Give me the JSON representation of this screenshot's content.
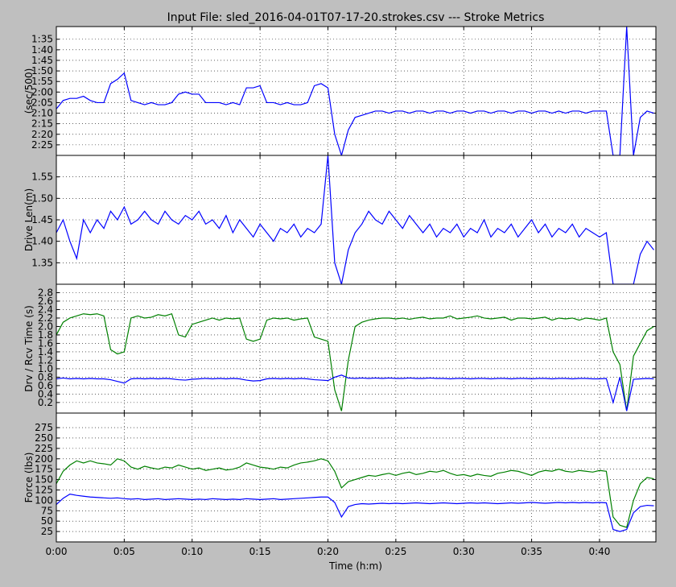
{
  "chart_data": {
    "type": "line",
    "title": "Input File:  sled_2016-04-01T07-17-20.strokes.csv --- Stroke Metrics",
    "xlabel": "Time (h:m)",
    "xlim": [
      0,
      44.15
    ],
    "xticks": [
      {
        "value": 0,
        "label": "0:00"
      },
      {
        "value": 5,
        "label": "0:05"
      },
      {
        "value": 10,
        "label": "0:10"
      },
      {
        "value": 15,
        "label": "0:15"
      },
      {
        "value": 20,
        "label": "0:20"
      },
      {
        "value": 25,
        "label": "0:25"
      },
      {
        "value": 30,
        "label": "0:30"
      },
      {
        "value": 35,
        "label": "0:35"
      },
      {
        "value": 40,
        "label": "0:40"
      }
    ],
    "grid": true,
    "x": [
      0,
      0.5,
      1,
      1.5,
      2,
      2.5,
      3,
      3.5,
      4,
      4.5,
      5,
      5.5,
      6,
      6.5,
      7,
      7.5,
      8,
      8.5,
      9,
      9.5,
      10,
      10.5,
      11,
      11.5,
      12,
      12.5,
      13,
      13.5,
      14,
      14.5,
      15,
      15.5,
      16,
      16.5,
      17,
      17.5,
      18,
      18.5,
      19,
      19.5,
      20,
      20.5,
      21,
      21.5,
      22,
      22.5,
      23,
      23.5,
      24,
      24.5,
      25,
      25.5,
      26,
      26.5,
      27,
      27.5,
      28,
      28.5,
      29,
      29.5,
      30,
      30.5,
      31,
      31.5,
      32,
      32.5,
      33,
      33.5,
      34,
      34.5,
      35,
      35.5,
      36,
      36.5,
      37,
      37.5,
      38,
      38.5,
      39,
      39.5,
      40,
      40.5,
      41,
      41.5,
      42,
      42.5,
      43,
      43.5,
      44
    ],
    "panels": [
      {
        "ylabel": "(sec/500)",
        "ylim": [
          150,
          89
        ],
        "yticks": [
          {
            "value": 95,
            "label": "1:35"
          },
          {
            "value": 100,
            "label": "1:40"
          },
          {
            "value": 105,
            "label": "1:45"
          },
          {
            "value": 110,
            "label": "1:50"
          },
          {
            "value": 115,
            "label": "1:55"
          },
          {
            "value": 120,
            "label": "2:00"
          },
          {
            "value": 125,
            "label": "2:05"
          },
          {
            "value": 130,
            "label": "2:10"
          },
          {
            "value": 135,
            "label": "2:15"
          },
          {
            "value": 140,
            "label": "2:20"
          },
          {
            "value": 145,
            "label": "2:25"
          }
        ],
        "series": [
          {
            "color": "#0000ff",
            "values": [
              128,
              124,
              123,
              123,
              122,
              124,
              125,
              125,
              116,
              114,
              111,
              124,
              125,
              126,
              125,
              126,
              126,
              125,
              121,
              120,
              121,
              121,
              125,
              125,
              125,
              126,
              125,
              126,
              118,
              118,
              117,
              125,
              125,
              126,
              125,
              126,
              126,
              125,
              117,
              116,
              118,
              140,
              150,
              138,
              132,
              131,
              130,
              129,
              129,
              130,
              129,
              129,
              130,
              129,
              129,
              130,
              129,
              129,
              130,
              129,
              129,
              130,
              129,
              129,
              130,
              129,
              129,
              130,
              129,
              129,
              130,
              129,
              129,
              130,
              129,
              130,
              129,
              129,
              130,
              129,
              129,
              129,
              150,
              150,
              89,
              150,
              132,
              129,
              130
            ]
          }
        ]
      },
      {
        "ylabel": "Drive Len(m)",
        "ylim": [
          1.3,
          1.6
        ],
        "yticks": [
          1.35,
          {
            "value": 1.4,
            "label": "1.40"
          },
          1.45,
          {
            "value": 1.5,
            "label": "1.50"
          },
          1.55
        ],
        "series": [
          {
            "color": "#0000ff",
            "values": [
              1.42,
              1.45,
              1.4,
              1.36,
              1.45,
              1.42,
              1.45,
              1.43,
              1.47,
              1.45,
              1.48,
              1.44,
              1.45,
              1.47,
              1.45,
              1.44,
              1.47,
              1.45,
              1.44,
              1.46,
              1.45,
              1.47,
              1.44,
              1.45,
              1.43,
              1.46,
              1.42,
              1.45,
              1.43,
              1.41,
              1.44,
              1.42,
              1.4,
              1.43,
              1.42,
              1.44,
              1.41,
              1.43,
              1.42,
              1.44,
              1.6,
              1.35,
              1.3,
              1.38,
              1.42,
              1.44,
              1.47,
              1.45,
              1.44,
              1.47,
              1.45,
              1.43,
              1.46,
              1.44,
              1.42,
              1.44,
              1.41,
              1.43,
              1.42,
              1.44,
              1.41,
              1.43,
              1.42,
              1.45,
              1.41,
              1.43,
              1.42,
              1.44,
              1.41,
              1.43,
              1.45,
              1.42,
              1.44,
              1.41,
              1.43,
              1.42,
              1.44,
              1.41,
              1.43,
              1.42,
              1.41,
              1.42,
              1.3,
              1.3,
              1.3,
              1.3,
              1.37,
              1.4,
              1.38
            ]
          }
        ]
      },
      {
        "ylabel": "Drv / Rcv Time (s)",
        "ylim": [
          -0.05,
          3.0
        ],
        "yticks": [
          0.2,
          0.4,
          0.6,
          0.8,
          {
            "value": 1,
            "label": "1.0"
          },
          1.2,
          1.4,
          1.6,
          1.8,
          {
            "value": 2,
            "label": "2.0"
          },
          2.2,
          2.4,
          2.6,
          2.8
        ],
        "series": [
          {
            "color": "#008000",
            "values": [
              1.8,
              2.1,
              2.2,
              2.25,
              2.3,
              2.28,
              2.3,
              2.25,
              1.45,
              1.35,
              1.4,
              2.2,
              2.25,
              2.2,
              2.22,
              2.28,
              2.25,
              2.3,
              1.8,
              1.75,
              2.05,
              2.1,
              2.15,
              2.2,
              2.15,
              2.2,
              2.18,
              2.2,
              1.7,
              1.65,
              1.7,
              2.15,
              2.2,
              2.18,
              2.2,
              2.15,
              2.18,
              2.2,
              1.75,
              1.7,
              1.65,
              0.5,
              0,
              1.2,
              2.0,
              2.1,
              2.15,
              2.18,
              2.2,
              2.2,
              2.18,
              2.2,
              2.17,
              2.2,
              2.22,
              2.18,
              2.2,
              2.2,
              2.25,
              2.18,
              2.2,
              2.22,
              2.25,
              2.2,
              2.18,
              2.2,
              2.22,
              2.15,
              2.2,
              2.2,
              2.18,
              2.2,
              2.22,
              2.15,
              2.2,
              2.18,
              2.2,
              2.15,
              2.2,
              2.18,
              2.15,
              2.2,
              1.4,
              1.1,
              0,
              1.3,
              1.6,
              1.9,
              2.0
            ]
          },
          {
            "color": "#0000ff",
            "values": [
              0.76,
              0.78,
              0.76,
              0.77,
              0.76,
              0.77,
              0.76,
              0.76,
              0.74,
              0.7,
              0.66,
              0.76,
              0.77,
              0.76,
              0.77,
              0.76,
              0.77,
              0.76,
              0.74,
              0.73,
              0.75,
              0.76,
              0.77,
              0.76,
              0.77,
              0.76,
              0.77,
              0.76,
              0.73,
              0.71,
              0.72,
              0.76,
              0.77,
              0.76,
              0.77,
              0.76,
              0.77,
              0.76,
              0.74,
              0.73,
              0.72,
              0.8,
              0.85,
              0.78,
              0.77,
              0.78,
              0.77,
              0.78,
              0.77,
              0.78,
              0.77,
              0.77,
              0.78,
              0.77,
              0.77,
              0.78,
              0.77,
              0.77,
              0.76,
              0.77,
              0.77,
              0.76,
              0.77,
              0.77,
              0.76,
              0.77,
              0.77,
              0.76,
              0.77,
              0.77,
              0.76,
              0.77,
              0.77,
              0.76,
              0.77,
              0.77,
              0.76,
              0.77,
              0.77,
              0.76,
              0.76,
              0.77,
              0.2,
              0.8,
              0,
              0.75,
              0.76,
              0.77,
              0.76
            ]
          }
        ]
      },
      {
        "ylabel": "Force (lbs)",
        "ylim": [
          0,
          310
        ],
        "yticks": [
          25,
          50,
          75,
          100,
          125,
          150,
          175,
          200,
          225,
          250,
          275
        ],
        "series": [
          {
            "color": "#008000",
            "values": [
              140,
              170,
              185,
              195,
              190,
              195,
              190,
              188,
              185,
              200,
              195,
              180,
              175,
              182,
              178,
              175,
              180,
              178,
              185,
              180,
              175,
              178,
              172,
              175,
              178,
              173,
              175,
              180,
              190,
              185,
              180,
              178,
              175,
              180,
              178,
              185,
              190,
              192,
              195,
              200,
              195,
              170,
              130,
              145,
              150,
              155,
              160,
              158,
              162,
              165,
              160,
              165,
              168,
              162,
              165,
              170,
              168,
              172,
              165,
              160,
              162,
              158,
              163,
              160,
              158,
              165,
              168,
              172,
              170,
              165,
              160,
              168,
              172,
              170,
              175,
              170,
              168,
              172,
              170,
              168,
              172,
              170,
              60,
              40,
              35,
              100,
              140,
              155,
              152
            ]
          },
          {
            "color": "#0000ff",
            "values": [
              90,
              105,
              115,
              112,
              110,
              108,
              107,
              106,
              105,
              106,
              104,
              103,
              104,
              102,
              103,
              104,
              102,
              103,
              104,
              103,
              102,
              103,
              102,
              104,
              103,
              102,
              103,
              102,
              104,
              103,
              102,
              103,
              104,
              102,
              103,
              104,
              105,
              106,
              107,
              108,
              108,
              95,
              60,
              85,
              90,
              92,
              91,
              92,
              93,
              92,
              93,
              92,
              93,
              94,
              93,
              92,
              93,
              94,
              93,
              92,
              93,
              94,
              93,
              94,
              93,
              92,
              93,
              94,
              93,
              94,
              95,
              94,
              93,
              94,
              95,
              94,
              95,
              94,
              95,
              94,
              95,
              94,
              30,
              25,
              30,
              70,
              85,
              88,
              87
            ]
          }
        ]
      }
    ]
  }
}
